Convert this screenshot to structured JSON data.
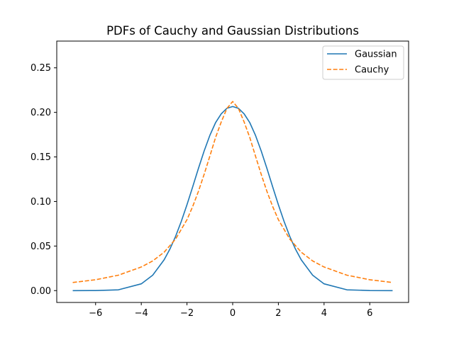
{
  "chart_data": {
    "type": "line",
    "title": "PDFs of Cauchy and Gaussian Distributions",
    "xlabel": "",
    "ylabel": "",
    "xlim": [
      -7.7,
      7.7
    ],
    "ylim": [
      -0.0133,
      0.28
    ],
    "grid": false,
    "legend_position": "top-right",
    "x_ticks": [
      -6,
      -4,
      -2,
      0,
      2,
      4,
      6
    ],
    "x_tick_labels": [
      "−6",
      "−4",
      "−2",
      "0",
      "2",
      "4",
      "6"
    ],
    "y_ticks": [
      0.0,
      0.05,
      0.1,
      0.15,
      0.2,
      0.25
    ],
    "y_tick_labels": [
      "0.00",
      "0.05",
      "0.10",
      "0.15",
      "0.20",
      "0.25"
    ],
    "series": [
      {
        "name": "Gaussian",
        "color": "#1f77b4",
        "dash": "solid",
        "x": [
          -7,
          -6,
          -5,
          -4,
          -3.5,
          -3,
          -2.75,
          -2.5,
          -2.25,
          -2,
          -1.75,
          -1.5,
          -1.25,
          -1,
          -0.75,
          -0.5,
          -0.25,
          0,
          0.25,
          0.5,
          0.75,
          1,
          1.25,
          1.5,
          1.75,
          2,
          2.25,
          2.5,
          2.75,
          3,
          3.5,
          4,
          5,
          6,
          7
        ],
        "y": [
          0.0,
          0.0001,
          0.0009,
          0.0076,
          0.0173,
          0.0346,
          0.0465,
          0.0608,
          0.0776,
          0.0964,
          0.1165,
          0.137,
          0.1566,
          0.1741,
          0.1884,
          0.1984,
          0.2046,
          0.2066,
          0.2046,
          0.1984,
          0.1884,
          0.1741,
          0.1566,
          0.137,
          0.1165,
          0.0964,
          0.0776,
          0.0608,
          0.0465,
          0.0346,
          0.0173,
          0.0076,
          0.0009,
          0.0001,
          0.0
        ]
      },
      {
        "name": "Cauchy",
        "color": "#ff7f0e",
        "dash": "dashed",
        "x": [
          -7,
          -6,
          -5,
          -4,
          -3.5,
          -3,
          -2.5,
          -2,
          -1.75,
          -1.5,
          -1.25,
          -1,
          -0.75,
          -0.5,
          -0.25,
          0,
          0.25,
          0.5,
          0.75,
          1,
          1.25,
          1.5,
          1.75,
          2,
          2.5,
          3,
          3.5,
          4,
          5,
          6,
          7
        ],
        "y": [
          0.0091,
          0.0122,
          0.0173,
          0.0265,
          0.0333,
          0.0431,
          0.0578,
          0.0796,
          0.0944,
          0.1113,
          0.1304,
          0.1508,
          0.1717,
          0.1893,
          0.2045,
          0.2122,
          0.2045,
          0.1893,
          0.1717,
          0.1508,
          0.1304,
          0.1113,
          0.0944,
          0.0796,
          0.0578,
          0.0431,
          0.0333,
          0.0265,
          0.0173,
          0.0122,
          0.0091
        ]
      }
    ]
  }
}
